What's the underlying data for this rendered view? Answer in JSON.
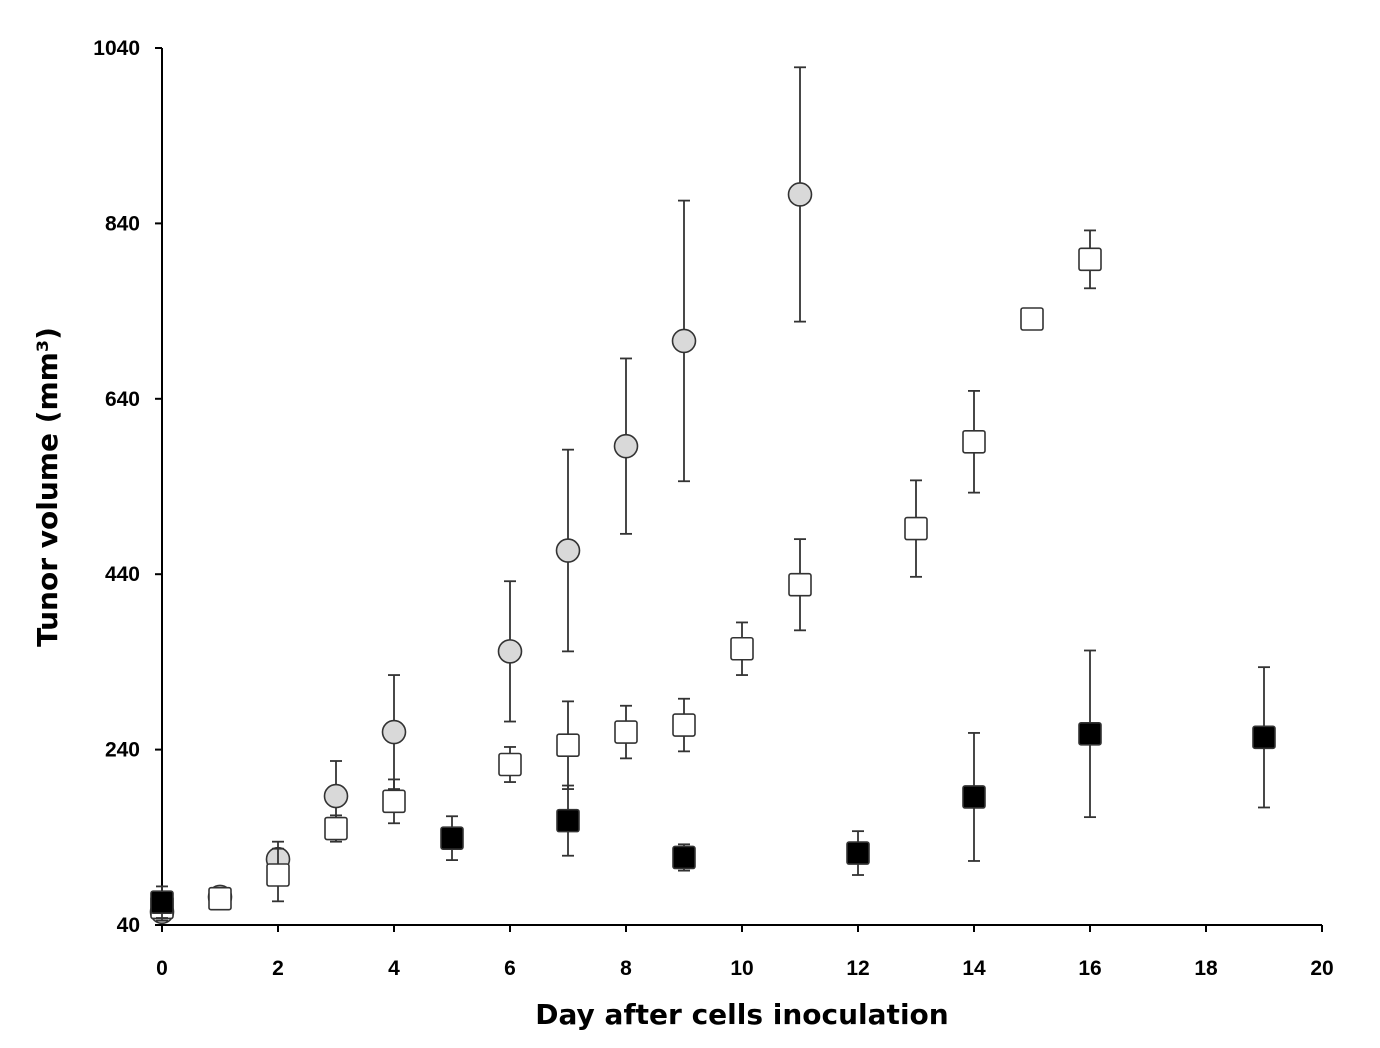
{
  "chart_data": {
    "type": "scatter",
    "title": "",
    "xlabel": "Day after cells inoculation",
    "ylabel": "Tunor volume (mm³)",
    "xlim": [
      0,
      20
    ],
    "ylim": [
      40,
      1040
    ],
    "xticks": [
      "0",
      "2",
      "4",
      "6",
      "8",
      "10",
      "12",
      "14",
      "16",
      "18",
      "20"
    ],
    "yticks": [
      "40",
      "240",
      "440",
      "640",
      "840",
      "1040"
    ],
    "grid": false,
    "legend": "none",
    "series": [
      {
        "marker": "circle",
        "fill": "#d9d9d9",
        "x": [
          0,
          1,
          2,
          3,
          4,
          6,
          7,
          8,
          9,
          11
        ],
        "y": [
          55,
          72,
          115,
          187,
          260,
          352,
          467,
          586,
          706,
          873
        ],
        "err": [
          0,
          0,
          20,
          40,
          65,
          80,
          115,
          100,
          160,
          145
        ]
      },
      {
        "marker": "square",
        "fill": "#ffffff",
        "x": [
          0,
          1,
          2,
          3,
          4,
          6,
          7,
          8,
          9,
          10,
          11,
          13,
          14,
          15,
          16
        ],
        "y": [
          60,
          70,
          97,
          150,
          181,
          223,
          245,
          260,
          268,
          355,
          428,
          492,
          591,
          731,
          799
        ],
        "err": [
          15,
          0,
          30,
          15,
          25,
          20,
          50,
          30,
          30,
          30,
          52,
          55,
          58,
          0,
          33
        ]
      },
      {
        "marker": "square",
        "fill": "#000000",
        "x": [
          0,
          5,
          7,
          9,
          12,
          14,
          16,
          19
        ],
        "y": [
          66,
          139,
          159,
          117,
          122,
          186,
          258,
          254
        ],
        "err": [
          18,
          25,
          40,
          15,
          25,
          73,
          95,
          80
        ]
      }
    ]
  }
}
